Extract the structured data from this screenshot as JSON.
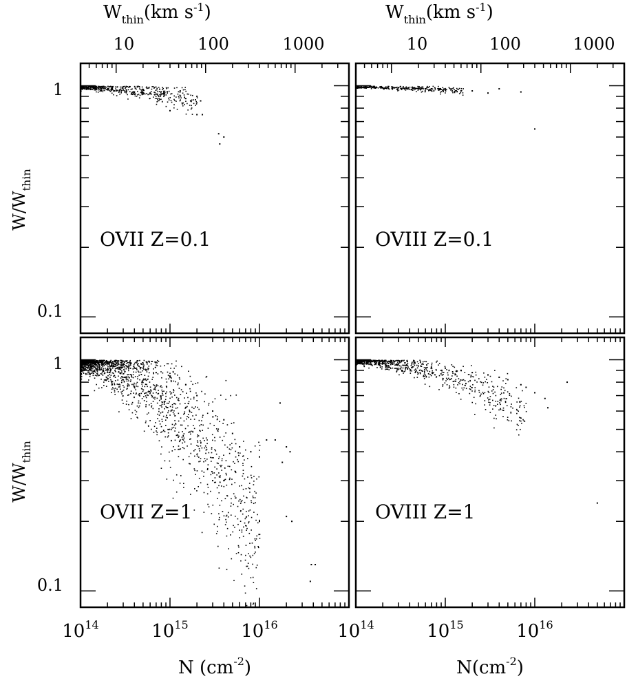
{
  "figure": {
    "top_axis_label": "W",
    "top_axis_label_sub": "thin",
    "top_axis_label_rest": "(km s",
    "top_axis_label_sup": "-1",
    "top_axis_label_close": ")",
    "y_axis_label_main": "W/W",
    "y_axis_label_sub": "thin",
    "x_axis_label_left_main": "N (cm",
    "x_axis_label_right_main": "N(cm",
    "x_axis_label_sup": "-2",
    "x_axis_label_close": ")",
    "top_ticks": [
      "10",
      "100",
      "1000"
    ],
    "y_ticks": [
      "1",
      "0.1"
    ],
    "x_ticks_base": "10",
    "x_ticks_exp_left": [
      "14",
      "15",
      "16"
    ],
    "x_ticks_exp_right": [
      "14",
      "15",
      "16"
    ]
  },
  "chart_data": [
    {
      "type": "scatter",
      "panel": "top-left",
      "annotation": "OVII Z=0.1",
      "xscale": "log",
      "yscale": "log",
      "xlim": [
        100000000000000.0,
        1e+17
      ],
      "ylim": [
        0.085,
        1.25
      ],
      "top_axis": {
        "label": "W_thin (km s^-1)",
        "scale": "log",
        "range": [
          4,
          4000
        ],
        "ticks": [
          10,
          100,
          1000
        ]
      },
      "points_approx": [
        [
          105000000000000.0,
          0.99
        ],
        [
          120000000000000.0,
          0.98
        ],
        [
          150000000000000.0,
          0.97
        ],
        [
          200000000000000.0,
          0.96
        ],
        [
          250000000000000.0,
          0.95
        ],
        [
          300000000000000.0,
          0.96
        ],
        [
          400000000000000.0,
          0.94
        ],
        [
          500000000000000.0,
          0.93
        ],
        [
          600000000000000.0,
          0.93
        ],
        [
          700000000000000.0,
          0.92
        ],
        [
          800000000000000.0,
          0.92
        ],
        [
          1000000000000000.0,
          0.78
        ],
        [
          1300000000000000.0,
          0.95
        ],
        [
          1500000000000000.0,
          0.88
        ],
        [
          1700000000000000.0,
          0.86
        ],
        [
          2000000000000000.0,
          0.9
        ],
        [
          2200000000000000.0,
          0.86
        ],
        [
          2000000000000000.0,
          0.75
        ],
        [
          2300000000000000.0,
          0.75
        ],
        [
          3500000000000000.0,
          0.62
        ],
        [
          4000000000000000.0,
          0.6
        ],
        [
          3600000000000000.0,
          0.56
        ]
      ],
      "cluster_description": "dense band of points near W/W_thin ~ 0.9-1.0 for N from 1e14 to ~2e15"
    },
    {
      "type": "scatter",
      "panel": "top-right",
      "annotation": "OVIII Z=0.1",
      "xscale": "log",
      "yscale": "log",
      "xlim": [
        100000000000000.0,
        1e+17
      ],
      "ylim": [
        0.085,
        1.25
      ],
      "top_axis": {
        "label": "W_thin (km s^-1)",
        "scale": "log",
        "range": [
          4,
          4000
        ],
        "ticks": [
          10,
          100,
          1000
        ]
      },
      "points_approx": [
        [
          105000000000000.0,
          0.99
        ],
        [
          130000000000000.0,
          0.99
        ],
        [
          200000000000000.0,
          0.98
        ],
        [
          300000000000000.0,
          0.98
        ],
        [
          500000000000000.0,
          0.97
        ],
        [
          700000000000000.0,
          0.97
        ],
        [
          1000000000000000.0,
          0.96
        ],
        [
          1500000000000000.0,
          0.95
        ],
        [
          2000000000000000.0,
          0.95
        ],
        [
          3000000000000000.0,
          0.93
        ],
        [
          4000000000000000.0,
          0.97
        ],
        [
          7000000000000000.0,
          0.94
        ],
        [
          1e+16,
          0.65
        ]
      ]
    },
    {
      "type": "scatter",
      "panel": "bottom-left",
      "annotation": "OVII Z=1",
      "xscale": "log",
      "yscale": "log",
      "xlim": [
        100000000000000.0,
        1e+17
      ],
      "ylim": [
        0.085,
        1.25
      ],
      "points_approx": [
        [
          105000000000000.0,
          0.99
        ],
        [
          150000000000000.0,
          0.98
        ],
        [
          200000000000000.0,
          0.97
        ],
        [
          300000000000000.0,
          0.95
        ],
        [
          500000000000000.0,
          0.92
        ],
        [
          700000000000000.0,
          0.88
        ],
        [
          1000000000000000.0,
          0.85
        ],
        [
          1500000000000000.0,
          0.78
        ],
        [
          2000000000000000.0,
          0.7
        ],
        [
          3000000000000000.0,
          0.6
        ],
        [
          4000000000000000.0,
          0.55
        ],
        [
          5000000000000000.0,
          0.48
        ],
        [
          6000000000000000.0,
          0.42
        ],
        [
          8000000000000000.0,
          0.4
        ],
        [
          1e+16,
          0.38
        ],
        [
          1.2e+16,
          0.45
        ],
        [
          1.5e+16,
          0.45
        ],
        [
          1.8e+16,
          0.36
        ],
        [
          2e+16,
          0.42
        ],
        [
          2.2e+16,
          0.4
        ],
        [
          3000000000000000.0,
          0.3
        ],
        [
          4000000000000000.0,
          0.3
        ],
        [
          1e+16,
          0.2
        ],
        [
          2e+16,
          0.21
        ],
        [
          2.3e+16,
          0.2
        ],
        [
          3.8e+16,
          0.13
        ],
        [
          4.2e+16,
          0.13
        ],
        [
          3.7e+16,
          0.11
        ],
        [
          1.7e+16,
          0.65
        ]
      ],
      "cluster_description": "broad downward-spreading cloud from ~1.0 at 1e14 to ~0.3-0.6 near 1e16"
    },
    {
      "type": "scatter",
      "panel": "bottom-right",
      "annotation": "OVIII Z=1",
      "xscale": "log",
      "yscale": "log",
      "xlim": [
        100000000000000.0,
        1e+17
      ],
      "ylim": [
        0.085,
        1.25
      ],
      "points_approx": [
        [
          105000000000000.0,
          0.99
        ],
        [
          150000000000000.0,
          0.98
        ],
        [
          200000000000000.0,
          0.97
        ],
        [
          300000000000000.0,
          0.96
        ],
        [
          500000000000000.0,
          0.94
        ],
        [
          700000000000000.0,
          0.93
        ],
        [
          1000000000000000.0,
          0.92
        ],
        [
          1500000000000000.0,
          0.9
        ],
        [
          2000000000000000.0,
          0.88
        ],
        [
          3000000000000000.0,
          0.86
        ],
        [
          4000000000000000.0,
          0.84
        ],
        [
          5000000000000000.0,
          0.82
        ],
        [
          7000000000000000.0,
          0.78
        ],
        [
          8000000000000000.0,
          0.76
        ],
        [
          1e+16,
          0.72
        ],
        [
          1.3e+16,
          0.68
        ],
        [
          1.4e+16,
          0.62
        ],
        [
          2.3e+16,
          0.8
        ],
        [
          5e+16,
          0.24
        ]
      ],
      "cluster_description": "narrow band declining from ~1.0 at 1e14 to ~0.75 near 1e16"
    }
  ]
}
